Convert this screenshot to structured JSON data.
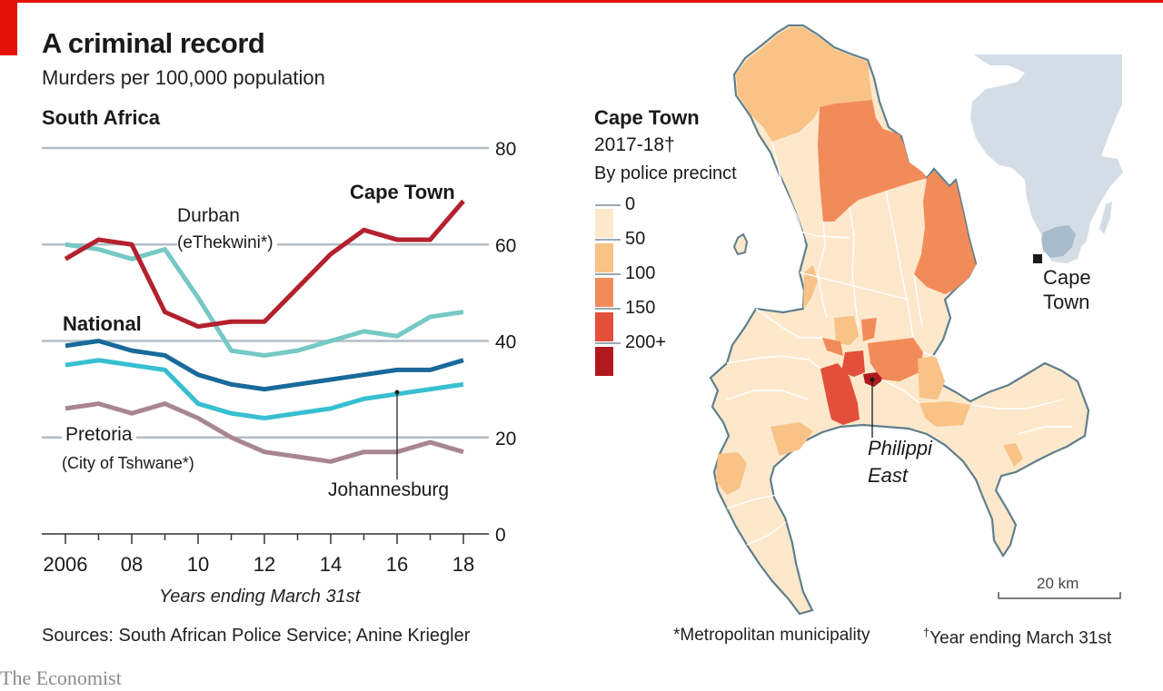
{
  "header": {
    "title": "A criminal record",
    "subtitle": "Murders per 100,000 population",
    "section": "South Africa"
  },
  "chart_data": {
    "type": "line",
    "title": "A criminal record",
    "subtitle": "Murders per 100,000 population",
    "panel_title": "South Africa",
    "xlabel": "Years ending March 31st",
    "ylabel": "Murders per 100,000 population",
    "x": [
      2006,
      2007,
      2008,
      2009,
      2010,
      2011,
      2012,
      2013,
      2014,
      2015,
      2016,
      2017,
      2018
    ],
    "x_tick_values": [
      2006,
      2008,
      2010,
      2012,
      2014,
      2016,
      2018
    ],
    "x_tick_labels": [
      "2006",
      "08",
      "10",
      "12",
      "14",
      "16",
      "18"
    ],
    "y_ticks": [
      0,
      20,
      40,
      60,
      80
    ],
    "ylim": [
      0,
      80
    ],
    "grid": true,
    "y_axis_side": "right",
    "series": [
      {
        "name": "Cape Town",
        "color": "#b5202e",
        "values": [
          57,
          61,
          60,
          46,
          43,
          44,
          44,
          51,
          58,
          63,
          61,
          61,
          69
        ]
      },
      {
        "name": "Durban (eThekwini*)",
        "color": "#76c9c4",
        "values": [
          60,
          59,
          57,
          59,
          49,
          38,
          37,
          38,
          40,
          42,
          41,
          45,
          46
        ]
      },
      {
        "name": "National",
        "color": "#19699a",
        "values": [
          39,
          40,
          38,
          37,
          33,
          31,
          30,
          31,
          32,
          33,
          34,
          34,
          36
        ]
      },
      {
        "name": "Johannesburg",
        "color": "#38bfd1",
        "values": [
          35,
          36,
          35,
          34,
          27,
          25,
          24,
          25,
          26,
          28,
          29,
          30,
          31
        ]
      },
      {
        "name": "Pretoria (City of Tshwane*)",
        "color": "#a8868f",
        "values": [
          26,
          27,
          25,
          27,
          24,
          20,
          17,
          16,
          15,
          17,
          17,
          19,
          17
        ]
      }
    ],
    "labels": {
      "cape_town": "Cape Town",
      "durban": "Durban",
      "durban_sub": "(eThekwini*)",
      "national": "National",
      "johannesburg": "Johannesburg",
      "pretoria": "Pretoria",
      "pretoria_sub": "(City of Tshwane*)"
    }
  },
  "map": {
    "title": "Cape Town",
    "period": "2017-18†",
    "subtitle": "By police precinct",
    "legend": {
      "thresholds": [
        "0",
        "50",
        "100",
        "150",
        "200+"
      ],
      "colors": [
        "#fde8cc",
        "#f9c286",
        "#f28b5a",
        "#e34f3a",
        "#b1191f"
      ]
    },
    "callout": "Philippi East",
    "callout_line2": "East",
    "callout_line1": "Philippi",
    "inset_label_line1": "Cape",
    "inset_label_line2": "Town",
    "scale": "20 km",
    "colors": {
      "coast": "#5f7f8c",
      "inset_land": "#d4dde5",
      "inset_sa": "#a9bccb"
    }
  },
  "footer": {
    "axis_title": "Years ending March 31st",
    "sources": "Sources: South African Police Service; Anine Kriegler",
    "footnote1": "*Metropolitan municipality",
    "footnote2_mark": "†",
    "footnote2": "Year ending March 31st",
    "logo": "The Economist"
  }
}
